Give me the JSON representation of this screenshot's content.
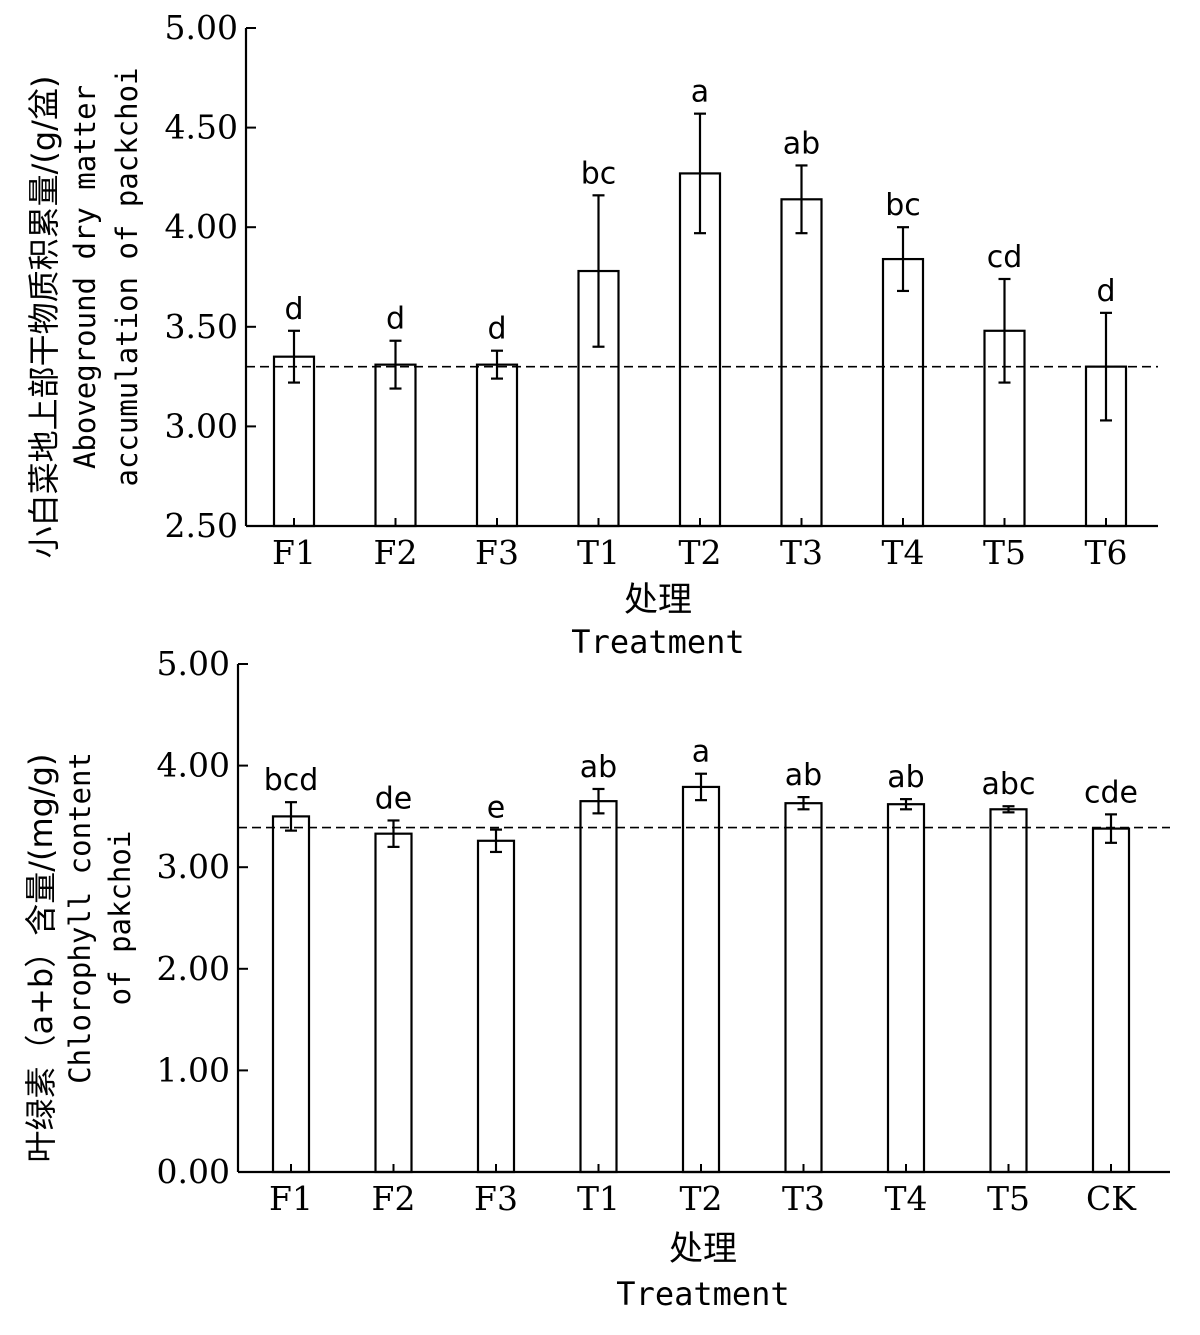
{
  "chart_data": [
    {
      "type": "bar",
      "categories": [
        "F1",
        "F2",
        "F3",
        "T1",
        "T2",
        "T3",
        "T4",
        "T5",
        "T6"
      ],
      "values": [
        3.35,
        3.31,
        3.31,
        3.78,
        4.27,
        4.14,
        3.84,
        3.48,
        3.3
      ],
      "errors": [
        0.13,
        0.12,
        0.07,
        0.38,
        0.3,
        0.17,
        0.16,
        0.26,
        0.27
      ],
      "significance": [
        "d",
        "d",
        "d",
        "bc",
        "a",
        "ab",
        "bc",
        "cd",
        "d"
      ],
      "reference_line": 3.3,
      "ylim": [
        2.5,
        5.0
      ],
      "yticks": [
        "2.50",
        "3.00",
        "3.50",
        "4.00",
        "4.50",
        "5.00"
      ],
      "xlabel_zh": "处理",
      "xlabel_en": "Treatment",
      "ylabel_zh": "小白菜地上部干物质积累量/(g/盆)",
      "ylabel_en_1": "Aboveground dry matter",
      "ylabel_en_2": "accumulation of packchoi"
    },
    {
      "type": "bar",
      "categories": [
        "F1",
        "F2",
        "F3",
        "T1",
        "T2",
        "T3",
        "T4",
        "T5",
        "CK"
      ],
      "values": [
        3.5,
        3.33,
        3.26,
        3.65,
        3.79,
        3.63,
        3.62,
        3.57,
        3.38
      ],
      "errors": [
        0.14,
        0.13,
        0.11,
        0.12,
        0.13,
        0.06,
        0.05,
        0.03,
        0.14
      ],
      "significance": [
        "bcd",
        "de",
        "e",
        "ab",
        "a",
        "ab",
        "ab",
        "abc",
        "cde"
      ],
      "reference_line": 3.39,
      "ylim": [
        0.0,
        5.0
      ],
      "yticks": [
        "0.00",
        "1.00",
        "2.00",
        "3.00",
        "4.00",
        "5.00"
      ],
      "xlabel_zh": "处理",
      "xlabel_en": "Treatment",
      "ylabel_zh": "叶绿素（a+b）含量/(mg/g)",
      "ylabel_en_1": "Chlorophyll content",
      "ylabel_en_2": "of pakchoi"
    }
  ]
}
